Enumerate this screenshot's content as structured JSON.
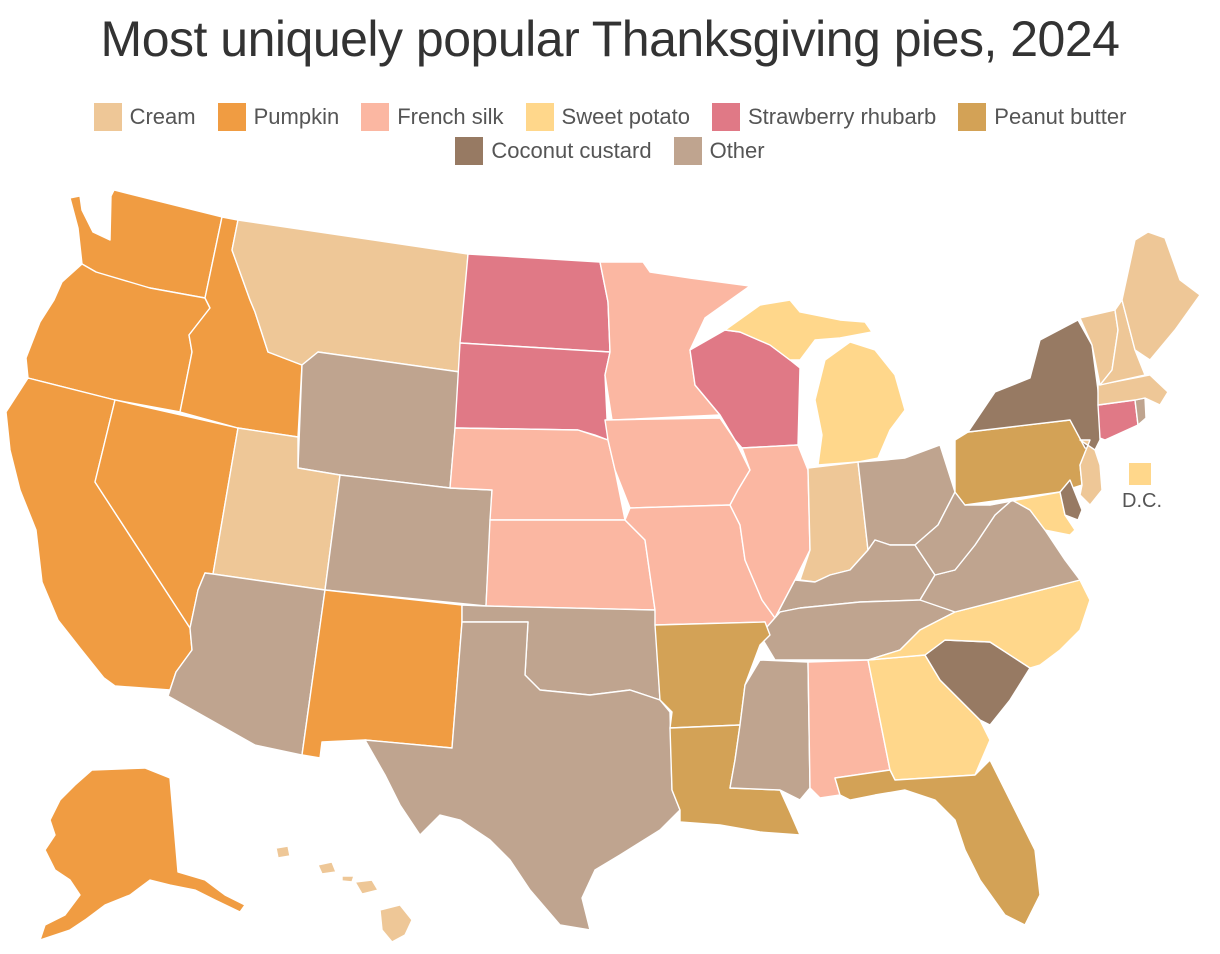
{
  "title": "Most uniquely popular Thanksgiving pies, 2024",
  "legend": [
    {
      "label": "Cream",
      "color": "#EEC797"
    },
    {
      "label": "Pumpkin",
      "color": "#F09C42"
    },
    {
      "label": "French silk",
      "color": "#FBB7A2"
    },
    {
      "label": "Sweet potato",
      "color": "#FFD78B"
    },
    {
      "label": "Strawberry rhubarb",
      "color": "#E07986"
    },
    {
      "label": "Peanut butter",
      "color": "#D3A256"
    },
    {
      "label": "Coconut custard",
      "color": "#977A63"
    },
    {
      "label": "Other",
      "color": "#BFA48F"
    }
  ],
  "dc_label": "D.C.",
  "colors": {
    "Cream": "#EEC797",
    "Pumpkin": "#F09C42",
    "French silk": "#FBB7A2",
    "Sweet potato": "#FFD78B",
    "Strawberry rhubarb": "#E07986",
    "Peanut butter": "#D3A256",
    "Coconut custard": "#977A63",
    "Other": "#BFA48F"
  },
  "states": {
    "WA": "Pumpkin",
    "OR": "Pumpkin",
    "CA": "Pumpkin",
    "ID": "Pumpkin",
    "NV": "Pumpkin",
    "NM": "Pumpkin",
    "AK": "Pumpkin",
    "MT": "Cream",
    "UT": "Cream",
    "IN": "Cream",
    "HI": "Cream",
    "ME": "Cream",
    "VT": "Cream",
    "NH": "Cream",
    "MA": "Cream",
    "NJ": "Cream",
    "ND": "Strawberry rhubarb",
    "SD": "Strawberry rhubarb",
    "WI": "Strawberry rhubarb",
    "CT": "Strawberry rhubarb",
    "MN": "French silk",
    "NE": "French silk",
    "KS": "French silk",
    "IA": "French silk",
    "MO": "French silk",
    "IL": "French silk",
    "AL": "French silk",
    "MI": "Sweet potato",
    "NC": "Sweet potato",
    "GA": "Sweet potato",
    "MD": "Sweet potato",
    "DC": "Sweet potato",
    "PA": "Peanut butter",
    "AR": "Peanut butter",
    "LA": "Peanut butter",
    "FL": "Peanut butter",
    "NY": "Coconut custard",
    "SC": "Coconut custard",
    "DE": "Coconut custard",
    "WY": "Other",
    "CO": "Other",
    "AZ": "Other",
    "TX": "Other",
    "OK": "Other",
    "MS": "Other",
    "TN": "Other",
    "KY": "Other",
    "OH": "Other",
    "WV": "Other",
    "VA": "Other",
    "RI": "Other"
  }
}
